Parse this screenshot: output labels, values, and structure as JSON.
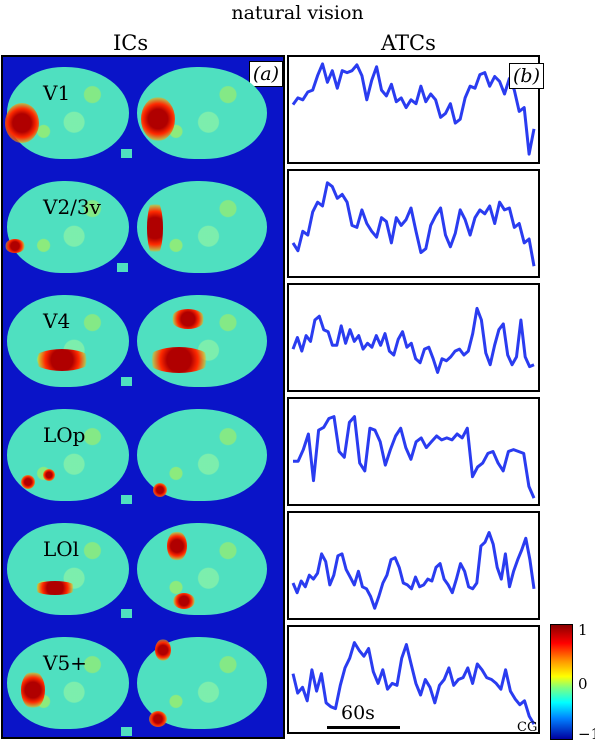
{
  "title": "natural vision",
  "columns": {
    "ics": "ICs",
    "atcs": "ATCs"
  },
  "panel_tags": {
    "a": "(a)",
    "b": "(b)"
  },
  "components": [
    {
      "label": "V1",
      "series": [
        0.55,
        0.62,
        0.6,
        0.68,
        0.7,
        0.85,
        0.97,
        0.78,
        0.9,
        0.72,
        0.9,
        0.88,
        0.9,
        0.96,
        0.85,
        0.6,
        0.8,
        0.94,
        0.7,
        0.64,
        0.76,
        0.58,
        0.62,
        0.52,
        0.6,
        0.56,
        0.74,
        0.58,
        0.66,
        0.6,
        0.42,
        0.46,
        0.56,
        0.36,
        0.4,
        0.62,
        0.74,
        0.72,
        0.86,
        0.88,
        0.74,
        0.84,
        0.79,
        0.66,
        0.82,
        0.7,
        0.48,
        0.52,
        0.04,
        0.3
      ]
    },
    {
      "label": "V2/3v",
      "series": [
        0.3,
        0.22,
        0.42,
        0.38,
        0.62,
        0.72,
        0.68,
        0.92,
        0.88,
        0.76,
        0.8,
        0.72,
        0.48,
        0.46,
        0.64,
        0.5,
        0.42,
        0.36,
        0.56,
        0.52,
        0.3,
        0.56,
        0.48,
        0.54,
        0.66,
        0.42,
        0.2,
        0.24,
        0.48,
        0.58,
        0.66,
        0.38,
        0.26,
        0.4,
        0.64,
        0.54,
        0.38,
        0.56,
        0.64,
        0.6,
        0.68,
        0.5,
        0.72,
        0.64,
        0.66,
        0.46,
        0.5,
        0.3,
        0.34,
        0.06
      ]
    },
    {
      "label": "V4",
      "series": [
        0.38,
        0.5,
        0.36,
        0.52,
        0.46,
        0.68,
        0.72,
        0.58,
        0.56,
        0.42,
        0.42,
        0.62,
        0.44,
        0.58,
        0.46,
        0.52,
        0.38,
        0.44,
        0.4,
        0.52,
        0.42,
        0.54,
        0.36,
        0.32,
        0.48,
        0.56,
        0.4,
        0.44,
        0.28,
        0.24,
        0.38,
        0.4,
        0.28,
        0.14,
        0.28,
        0.26,
        0.3,
        0.36,
        0.38,
        0.32,
        0.36,
        0.54,
        0.8,
        0.68,
        0.34,
        0.22,
        0.42,
        0.58,
        0.64,
        0.32,
        0.22,
        0.3,
        0.68,
        0.3,
        0.2,
        0.22
      ]
    },
    {
      "label": "LOp",
      "series": [
        0.4,
        0.4,
        0.52,
        0.68,
        0.2,
        0.72,
        0.75,
        0.84,
        0.86,
        0.5,
        0.44,
        0.8,
        0.86,
        0.38,
        0.3,
        0.74,
        0.72,
        0.6,
        0.36,
        0.52,
        0.66,
        0.74,
        0.54,
        0.42,
        0.6,
        0.64,
        0.54,
        0.6,
        0.66,
        0.62,
        0.64,
        0.62,
        0.68,
        0.64,
        0.74,
        0.24,
        0.34,
        0.38,
        0.48,
        0.5,
        0.38,
        0.3,
        0.5,
        0.52,
        0.5,
        0.48,
        0.14,
        0.02
      ]
    },
    {
      "label": "LOl",
      "series": [
        0.32,
        0.22,
        0.34,
        0.28,
        0.4,
        0.36,
        0.42,
        0.62,
        0.54,
        0.3,
        0.4,
        0.6,
        0.62,
        0.46,
        0.38,
        0.3,
        0.44,
        0.28,
        0.26,
        0.18,
        0.06,
        0.18,
        0.32,
        0.4,
        0.56,
        0.58,
        0.48,
        0.32,
        0.3,
        0.26,
        0.38,
        0.28,
        0.3,
        0.36,
        0.34,
        0.48,
        0.52,
        0.36,
        0.3,
        0.22,
        0.36,
        0.52,
        0.44,
        0.28,
        0.26,
        0.32,
        0.7,
        0.74,
        0.84,
        0.72,
        0.48,
        0.36,
        0.62,
        0.28,
        0.44,
        0.56,
        0.66,
        0.78,
        0.56,
        0.26
      ]
    },
    {
      "label": "V5+",
      "series": [
        0.56,
        0.36,
        0.42,
        0.28,
        0.6,
        0.38,
        0.56,
        0.26,
        0.22,
        0.2,
        0.44,
        0.62,
        0.72,
        0.88,
        0.8,
        0.74,
        0.82,
        0.58,
        0.46,
        0.6,
        0.4,
        0.46,
        0.44,
        0.72,
        0.86,
        0.66,
        0.46,
        0.34,
        0.5,
        0.42,
        0.26,
        0.44,
        0.5,
        0.62,
        0.44,
        0.5,
        0.52,
        0.62,
        0.46,
        0.66,
        0.6,
        0.52,
        0.5,
        0.46,
        0.4,
        0.6,
        0.38,
        0.3,
        0.24,
        0.28,
        0.12,
        0.04
      ]
    }
  ],
  "scale_label": "60s",
  "corner_label": "CG",
  "colorbar": {
    "max": "1",
    "mid": "0",
    "min": "−1"
  },
  "colors": {
    "ic_background": "#0a14c8",
    "trace": "#2a3cf0"
  }
}
